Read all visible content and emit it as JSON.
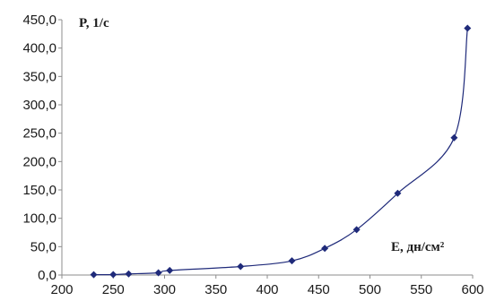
{
  "chart_data": {
    "type": "scatter",
    "xlabel": "E, дн/см²",
    "ylabel": "P, 1/с",
    "xlim": [
      200,
      600
    ],
    "ylim": [
      0,
      450
    ],
    "x_ticks": [
      "200",
      "250",
      "300",
      "350",
      "400",
      "450",
      "500",
      "550",
      "600"
    ],
    "y_ticks": [
      "0,0",
      "50,0",
      "100,0",
      "150,0",
      "200,0",
      "250,0",
      "300,0",
      "350,0",
      "400,0",
      "450,0"
    ],
    "grid": false,
    "marker": "diamond",
    "line": "smooth",
    "color": "#1f2a7a",
    "x": [
      231,
      250,
      265,
      294,
      305,
      374,
      424,
      456,
      487,
      527,
      582,
      595
    ],
    "y": [
      0.5,
      0.8,
      2.0,
      4.0,
      8.0,
      15.0,
      25.0,
      47.0,
      80.0,
      144.0,
      242.0,
      435.0
    ]
  }
}
